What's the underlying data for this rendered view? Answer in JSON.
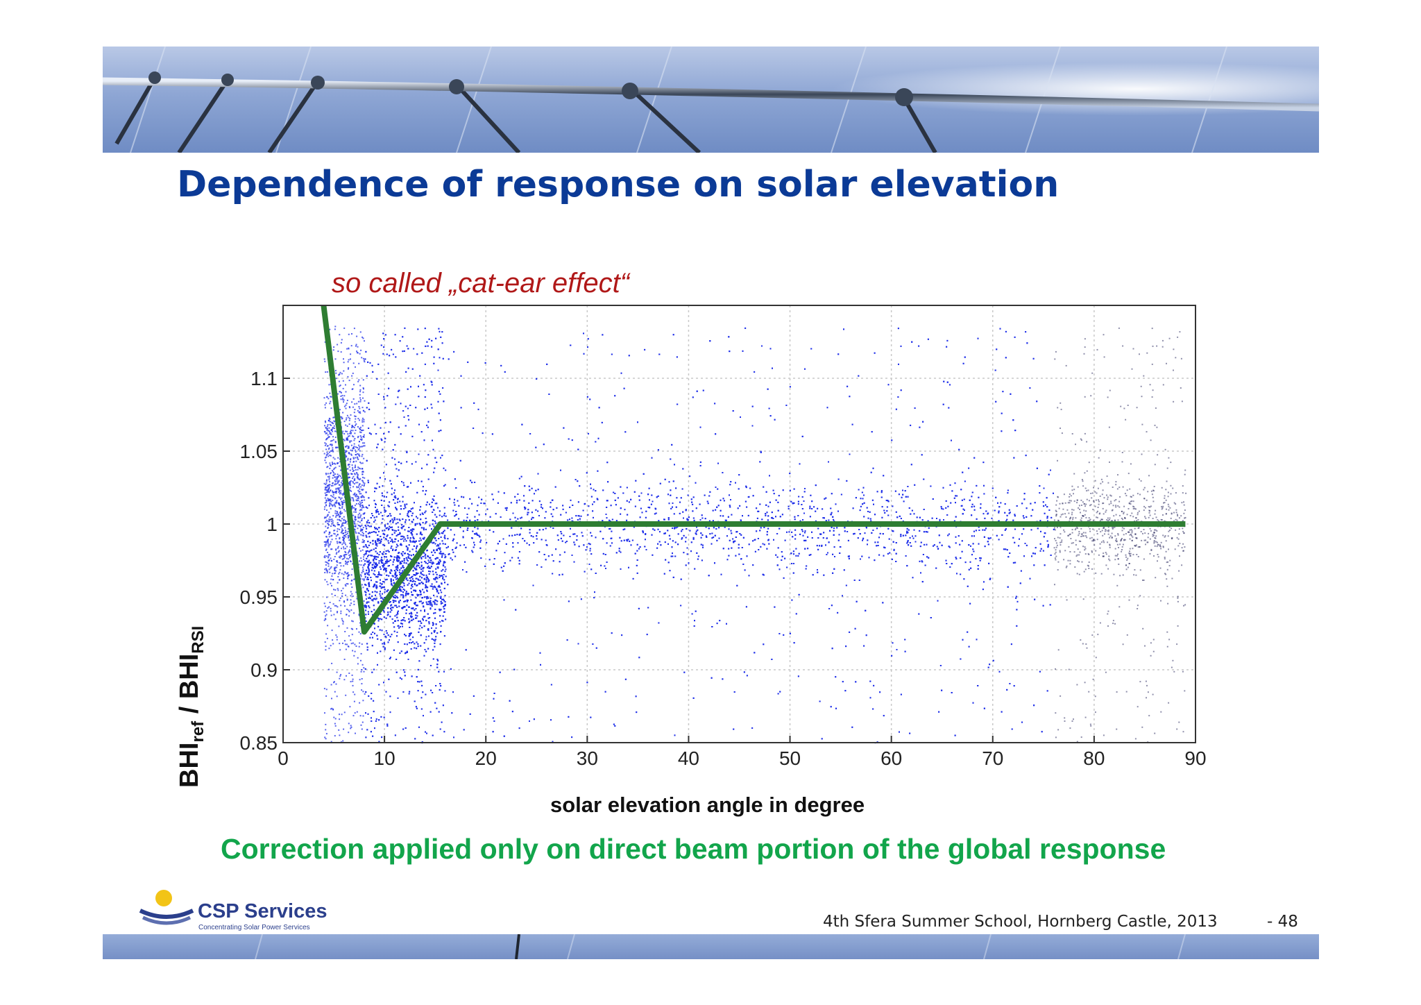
{
  "slide": {
    "title": "Dependence of response on solar elevation",
    "annotation": "so called „cat-ear effect“",
    "conclusion": "Correction applied only on direct beam portion of the global response",
    "footer": "4th Sfera Summer School, Hornberg Castle, 2013",
    "page_number": "- 48",
    "logo_name": "CSP Services",
    "logo_subtitle": "Concentrating Solar Power Services"
  },
  "colors": {
    "title": "#0b3a96",
    "annotation": "#b01818",
    "conclusion": "#12a54b",
    "scatter": "#1f2fe8",
    "correction_line": "#2e7d32"
  },
  "chart_data": {
    "type": "scatter",
    "title": "",
    "xlabel": "solar elevation angle in degree",
    "ylabel_main": "BHI",
    "ylabel_sub1": "ref",
    "ylabel_slash": " / ",
    "ylabel_sub2": "RSI",
    "xlim": [
      0,
      90
    ],
    "ylim": [
      0.85,
      1.15
    ],
    "x_ticks": [
      0,
      10,
      20,
      30,
      40,
      50,
      60,
      70,
      80,
      90
    ],
    "y_ticks": [
      0.85,
      0.9,
      0.95,
      1,
      1.05,
      1.1
    ],
    "y_tick_labels": [
      "0.85",
      "0.9",
      "0.95",
      "1",
      "1.05",
      "1.1"
    ],
    "grid": true,
    "scatter_description_bands": [
      {
        "x_range": [
          4,
          8
        ],
        "center": 1.02,
        "spread": 0.08
      },
      {
        "x_range": [
          8,
          16
        ],
        "center": 0.97,
        "spread": 0.05
      },
      {
        "x_range": [
          16,
          76
        ],
        "center": 1.0,
        "spread": 0.03
      },
      {
        "x_range": [
          76,
          89
        ],
        "center": 1.0,
        "spread": 0.03
      }
    ],
    "series": [
      {
        "name": "",
        "kind": "line",
        "x": [
          4,
          8,
          15.5,
          89
        ],
        "y": [
          1.15,
          0.926,
          1.0,
          1.0
        ]
      }
    ]
  }
}
